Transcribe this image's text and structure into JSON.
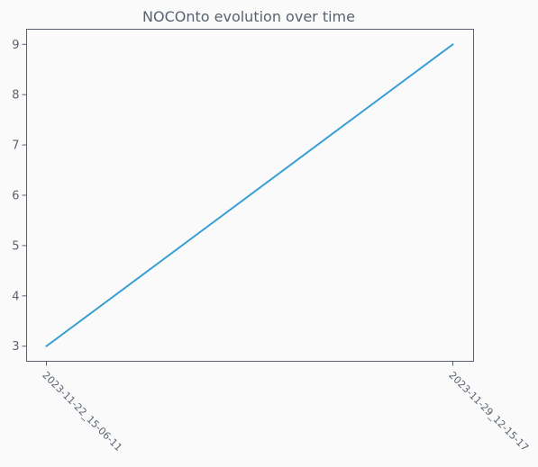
{
  "chart_data": {
    "type": "line",
    "title": "NOCOnto evolution over time",
    "xlabel": "",
    "ylabel": "",
    "categories": [
      "2023-11-22_15-06-11",
      "2023-11-29_12-15-17"
    ],
    "series": [
      {
        "values": [
          3,
          9
        ],
        "color": "#3a9fd4"
      }
    ],
    "yticks": [
      3,
      4,
      5,
      6,
      7,
      8,
      9
    ],
    "ylim": [
      2.7,
      9.3
    ],
    "grid": false,
    "legend": "none"
  },
  "colors": {
    "background": "#fafafa",
    "axis": "#5a6270",
    "text": "#5a6270",
    "line": "#3a9fd4"
  }
}
